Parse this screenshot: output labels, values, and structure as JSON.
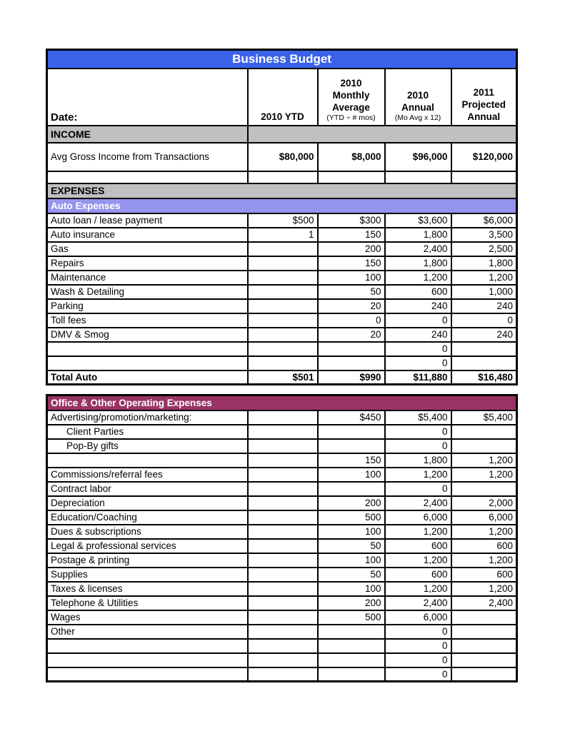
{
  "header": {
    "title": "Business Budget",
    "date_label": "Date:",
    "columns": [
      {
        "title": "2010 YTD",
        "sub": ""
      },
      {
        "title": "2010\nMonthly\nAverage",
        "sub": "(YTD ÷ # mos)"
      },
      {
        "title": "2010\nAnnual",
        "sub": "(Mo Avg x 12)"
      },
      {
        "title": "2011\nProjected\nAnnual",
        "sub": ""
      }
    ]
  },
  "colors": {
    "title_bg": "#3a62e8",
    "section_band_gray": "#c0c0c0",
    "auto_band_periwinkle": "#9595ee",
    "office_band_plum": "#993366"
  },
  "sections": {
    "income": {
      "band": "INCOME",
      "rows": [
        {
          "label": "Avg Gross Income from Transactions",
          "values": [
            "$80,000",
            "$8,000",
            "$96,000",
            "$120,000"
          ],
          "tall": true,
          "bold_values": true
        },
        {
          "label": "",
          "values": [
            "",
            "",
            "",
            ""
          ],
          "short": true
        }
      ]
    },
    "expenses_band": "EXPENSES",
    "auto": {
      "band": "Auto Expenses",
      "rows": [
        {
          "label": "Auto loan / lease payment",
          "values": [
            "$500",
            "$300",
            "$3,600",
            "$6,000"
          ]
        },
        {
          "label": "Auto insurance",
          "values": [
            "1",
            "150",
            "1,800",
            "3,500"
          ]
        },
        {
          "label": "Gas",
          "values": [
            "",
            "200",
            "2,400",
            "2,500"
          ]
        },
        {
          "label": "Repairs",
          "values": [
            "",
            "150",
            "1,800",
            "1,800"
          ]
        },
        {
          "label": "Maintenance",
          "values": [
            "",
            "100",
            "1,200",
            "1,200"
          ]
        },
        {
          "label": "Wash & Detailing",
          "values": [
            "",
            "50",
            "600",
            "1,000"
          ]
        },
        {
          "label": "Parking",
          "values": [
            "",
            "20",
            "240",
            "240"
          ]
        },
        {
          "label": "Toll fees",
          "values": [
            "",
            "0",
            "0",
            "0"
          ]
        },
        {
          "label": "DMV & Smog",
          "values": [
            "",
            "20",
            "240",
            "240"
          ]
        },
        {
          "label": "",
          "values": [
            "",
            "",
            "0",
            ""
          ]
        },
        {
          "label": "",
          "values": [
            "",
            "",
            "0",
            ""
          ]
        },
        {
          "label": "Total Auto",
          "values": [
            "$501",
            "$990",
            "$11,880",
            "$16,480"
          ],
          "bold": true
        }
      ]
    },
    "office": {
      "band": "Office & Other Operating Expenses",
      "rows": [
        {
          "label": "Advertising/promotion/marketing:",
          "values": [
            "",
            "$450",
            "$5,400",
            "$5,400"
          ]
        },
        {
          "label": "Client Parties",
          "indent": true,
          "values": [
            "",
            "",
            "0",
            ""
          ]
        },
        {
          "label": "Pop-By gifts",
          "indent": true,
          "values": [
            "",
            "",
            "0",
            ""
          ]
        },
        {
          "label": "",
          "values": [
            "",
            "150",
            "1,800",
            "1,200"
          ]
        },
        {
          "label": "Commissions/referral fees",
          "values": [
            "",
            "100",
            "1,200",
            "1,200"
          ]
        },
        {
          "label": "Contract labor",
          "values": [
            "",
            "",
            "0",
            ""
          ]
        },
        {
          "label": "Depreciation",
          "values": [
            "",
            "200",
            "2,400",
            "2,000"
          ]
        },
        {
          "label": "Education/Coaching",
          "values": [
            "",
            "500",
            "6,000",
            "6,000"
          ]
        },
        {
          "label": "Dues & subscriptions",
          "values": [
            "",
            "100",
            "1,200",
            "1,200"
          ]
        },
        {
          "label": "Legal & professional services",
          "values": [
            "",
            "50",
            "600",
            "600"
          ]
        },
        {
          "label": "Postage & printing",
          "values": [
            "",
            "100",
            "1,200",
            "1,200"
          ]
        },
        {
          "label": "Supplies",
          "values": [
            "",
            "50",
            "600",
            "600"
          ]
        },
        {
          "label": "Taxes & licenses",
          "values": [
            "",
            "100",
            "1,200",
            "1,200"
          ]
        },
        {
          "label": "Telephone & Utilities",
          "values": [
            "",
            "200",
            "2,400",
            "2,400"
          ]
        },
        {
          "label": "Wages",
          "values": [
            "",
            "500",
            "6,000",
            ""
          ]
        },
        {
          "label": "Other",
          "values": [
            "",
            "",
            "0",
            ""
          ]
        },
        {
          "label": "",
          "values": [
            "",
            "",
            "0",
            ""
          ]
        },
        {
          "label": "",
          "values": [
            "",
            "",
            "0",
            ""
          ]
        },
        {
          "label": "",
          "values": [
            "",
            "",
            "0",
            ""
          ]
        }
      ]
    }
  }
}
